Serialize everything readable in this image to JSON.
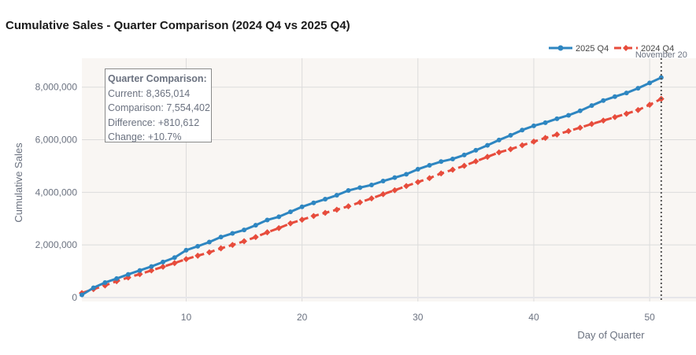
{
  "colors": {
    "current": "#2e86c1",
    "comparison": "#e74c3c",
    "plot_bg": "#f9f6f3",
    "grid": "#dcdcdc",
    "marker_line": "#555555"
  },
  "chart_data": {
    "type": "line",
    "title": "Cumulative Sales - Quarter Comparison (2024 Q4 vs 2025 Q4)",
    "xlabel": "Day of Quarter",
    "ylabel": "Cumulative Sales",
    "xlim": [
      1,
      54
    ],
    "ylim": [
      -150000,
      9100000
    ],
    "x_ticks": [
      10,
      20,
      30,
      40,
      50
    ],
    "y_ticks": [
      0,
      2000000,
      4000000,
      6000000,
      8000000
    ],
    "y_tick_labels": [
      "0",
      "2,000,000",
      "4,000,000",
      "6,000,000",
      "8,000,000"
    ],
    "legend_position": "top-right",
    "x": [
      1,
      2,
      3,
      4,
      5,
      6,
      7,
      8,
      9,
      10,
      11,
      12,
      13,
      14,
      15,
      16,
      17,
      18,
      19,
      20,
      21,
      22,
      23,
      24,
      25,
      26,
      27,
      28,
      29,
      30,
      31,
      32,
      33,
      34,
      35,
      36,
      37,
      38,
      39,
      40,
      41,
      42,
      43,
      44,
      45,
      46,
      47,
      48,
      49,
      50,
      51
    ],
    "series": [
      {
        "name": "2025 Q4",
        "style": "solid",
        "values": [
          100000,
          370000,
          570000,
          720000,
          880000,
          1030000,
          1180000,
          1350000,
          1520000,
          1800000,
          1950000,
          2110000,
          2300000,
          2440000,
          2570000,
          2750000,
          2950000,
          3070000,
          3260000,
          3450000,
          3600000,
          3740000,
          3890000,
          4070000,
          4180000,
          4280000,
          4430000,
          4560000,
          4690000,
          4880000,
          5030000,
          5170000,
          5270000,
          5420000,
          5600000,
          5790000,
          5990000,
          6170000,
          6370000,
          6530000,
          6650000,
          6800000,
          6930000,
          7100000,
          7300000,
          7490000,
          7640000,
          7780000,
          7960000,
          8160000,
          8365014
        ]
      },
      {
        "name": "2024 Q4",
        "style": "dashed",
        "values": [
          170000,
          320000,
          460000,
          620000,
          760000,
          890000,
          1030000,
          1170000,
          1310000,
          1460000,
          1590000,
          1720000,
          1870000,
          2000000,
          2140000,
          2300000,
          2480000,
          2640000,
          2820000,
          2960000,
          3100000,
          3220000,
          3340000,
          3470000,
          3620000,
          3770000,
          3930000,
          4080000,
          4240000,
          4390000,
          4540000,
          4720000,
          4860000,
          5010000,
          5180000,
          5350000,
          5520000,
          5640000,
          5790000,
          5930000,
          6070000,
          6200000,
          6330000,
          6460000,
          6600000,
          6730000,
          6860000,
          6990000,
          7130000,
          7330000,
          7554402
        ]
      }
    ],
    "annotations": {
      "marker_day": 51,
      "marker_label": "November 20",
      "tooltip": {
        "title": "Quarter Comparison:",
        "current": "Current: 8,365,014",
        "comparison": "Comparison: 7,554,402",
        "difference": "Difference: +810,612",
        "change": "Change: +10.7%"
      }
    }
  }
}
